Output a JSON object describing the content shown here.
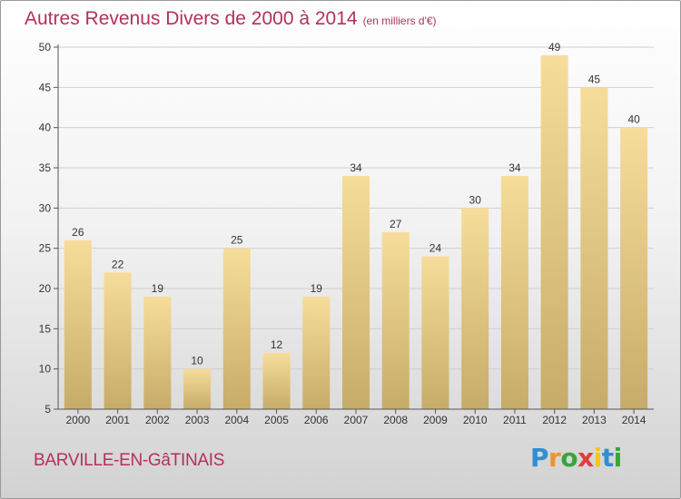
{
  "title": "Autres Revenus Divers de 2000 à 2014",
  "subtitle": "(en milliers d'€)",
  "footer": {
    "city": "BARVILLE-EN-GâTINAIS"
  },
  "logo": {
    "text": "Proxiti"
  },
  "colors": {
    "title": "#b5305a",
    "bar_light": "#f7dd9a",
    "bar_dark": "#c7ab69",
    "grid": "#d0d0d0",
    "logo_letters": [
      "#2f8fd0",
      "#f0932b",
      "#3aa33a",
      "#e23b3b",
      "#f5c518",
      "#2f8fd0",
      "#3aa33a"
    ]
  },
  "chart_data": {
    "type": "bar",
    "title": "Autres Revenus Divers de 2000 à 2014",
    "subtitle": "(en milliers d'€)",
    "categories": [
      "2000",
      "2001",
      "2002",
      "2003",
      "2004",
      "2005",
      "2006",
      "2007",
      "2008",
      "2009",
      "2010",
      "2011",
      "2012",
      "2013",
      "2014"
    ],
    "values": [
      26,
      22,
      19,
      10,
      25,
      12,
      19,
      34,
      27,
      24,
      30,
      34,
      49,
      45,
      40
    ],
    "ylim": [
      5,
      50
    ],
    "yticks": [
      5,
      10,
      15,
      20,
      25,
      30,
      35,
      40,
      45,
      50
    ],
    "grid": true,
    "data_labels": true
  }
}
